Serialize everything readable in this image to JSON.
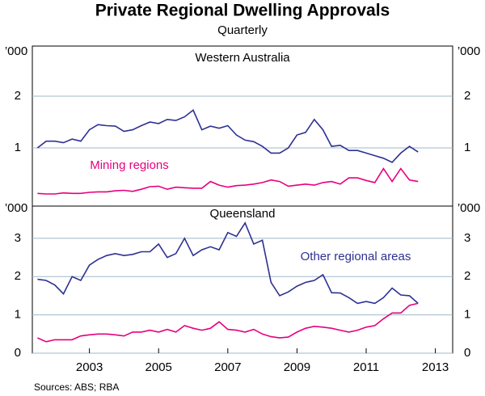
{
  "title": "Private Regional Dwelling Approvals",
  "subtitle": "Quarterly",
  "source": "Sources: ABS; RBA",
  "chart_data": [
    {
      "type": "line",
      "title": "Western Australia",
      "y_label": "’000",
      "x": [
        2001.5,
        2001.75,
        2002,
        2002.25,
        2002.5,
        2002.75,
        2003,
        2003.25,
        2003.5,
        2003.75,
        2004,
        2004.25,
        2004.5,
        2004.75,
        2005,
        2005.25,
        2005.5,
        2005.75,
        2006,
        2006.25,
        2006.5,
        2006.75,
        2007,
        2007.25,
        2007.5,
        2007.75,
        2008,
        2008.25,
        2008.5,
        2008.75,
        2009,
        2009.25,
        2009.5,
        2009.75,
        2010,
        2010.25,
        2010.5,
        2010.75,
        2011,
        2011.25,
        2011.5,
        2011.75,
        2012,
        2012.25,
        2012.5
      ],
      "xlim": [
        2001.35,
        2013.5
      ],
      "ylim": [
        0,
        3
      ],
      "yticks": [
        1,
        2
      ],
      "grid": true,
      "series": [
        {
          "color": "#2e3192",
          "values": [
            1.0,
            1.13,
            1.13,
            1.1,
            1.17,
            1.13,
            1.35,
            1.45,
            1.43,
            1.42,
            1.32,
            1.35,
            1.43,
            1.5,
            1.47,
            1.55,
            1.53,
            1.6,
            1.73,
            1.35,
            1.42,
            1.38,
            1.43,
            1.25,
            1.15,
            1.12,
            1.03,
            0.9,
            0.9,
            1.0,
            1.25,
            1.3,
            1.55,
            1.35,
            1.03,
            1.05,
            0.95,
            0.95,
            0.9,
            0.85,
            0.8,
            0.72,
            0.9,
            1.03,
            0.92
          ]
        },
        {
          "name": "Mining regions",
          "color": "#e6007e",
          "values": [
            0.12,
            0.11,
            0.11,
            0.13,
            0.12,
            0.12,
            0.14,
            0.15,
            0.15,
            0.17,
            0.18,
            0.16,
            0.2,
            0.25,
            0.26,
            0.2,
            0.24,
            0.23,
            0.22,
            0.22,
            0.35,
            0.28,
            0.24,
            0.27,
            0.28,
            0.3,
            0.33,
            0.38,
            0.35,
            0.26,
            0.28,
            0.3,
            0.28,
            0.33,
            0.35,
            0.3,
            0.42,
            0.42,
            0.37,
            0.33,
            0.6,
            0.35,
            0.6,
            0.38,
            0.35
          ]
        }
      ]
    },
    {
      "type": "line",
      "title": "Queensland",
      "y_label": "’000",
      "x": [
        2001.5,
        2001.75,
        2002,
        2002.25,
        2002.5,
        2002.75,
        2003,
        2003.25,
        2003.5,
        2003.75,
        2004,
        2004.25,
        2004.5,
        2004.75,
        2005,
        2005.25,
        2005.5,
        2005.75,
        2006,
        2006.25,
        2006.5,
        2006.75,
        2007,
        2007.25,
        2007.5,
        2007.75,
        2008,
        2008.25,
        2008.5,
        2008.75,
        2009,
        2009.25,
        2009.5,
        2009.75,
        2010,
        2010.25,
        2010.5,
        2010.75,
        2011,
        2011.25,
        2011.5,
        2011.75,
        2012,
        2012.25,
        2012.5
      ],
      "xlim": [
        2001.35,
        2013.5
      ],
      "xticks": [
        2003,
        2005,
        2007,
        2009,
        2011,
        2013
      ],
      "ylim": [
        0,
        3.8
      ],
      "yticks": [
        0,
        1,
        2,
        3
      ],
      "grid": true,
      "series": [
        {
          "name": "Other regional areas",
          "color": "#2e3192",
          "values": [
            1.93,
            1.9,
            1.78,
            1.55,
            2.0,
            1.9,
            2.3,
            2.45,
            2.55,
            2.6,
            2.55,
            2.58,
            2.65,
            2.65,
            2.85,
            2.5,
            2.6,
            3.0,
            2.55,
            2.7,
            2.78,
            2.7,
            3.15,
            3.05,
            3.4,
            2.85,
            2.95,
            1.85,
            1.5,
            1.6,
            1.75,
            1.85,
            1.9,
            2.05,
            1.58,
            1.57,
            1.45,
            1.3,
            1.35,
            1.3,
            1.45,
            1.7,
            1.52,
            1.5,
            1.3
          ]
        },
        {
          "color": "#e6007e",
          "values": [
            0.4,
            0.3,
            0.35,
            0.35,
            0.35,
            0.45,
            0.48,
            0.5,
            0.5,
            0.48,
            0.45,
            0.55,
            0.55,
            0.6,
            0.55,
            0.62,
            0.55,
            0.72,
            0.65,
            0.6,
            0.65,
            0.82,
            0.62,
            0.6,
            0.55,
            0.62,
            0.5,
            0.43,
            0.4,
            0.42,
            0.55,
            0.65,
            0.7,
            0.68,
            0.65,
            0.6,
            0.55,
            0.6,
            0.68,
            0.72,
            0.9,
            1.05,
            1.05,
            1.25,
            1.3
          ]
        }
      ]
    }
  ]
}
